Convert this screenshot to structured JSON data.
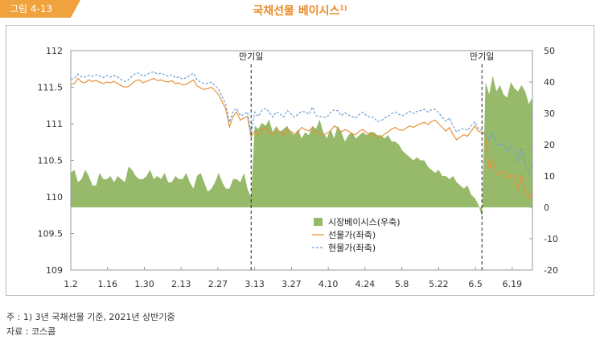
{
  "header": {
    "figure_label": "그림 4-13",
    "title": "국채선물 베이시스",
    "title_sup": "1)"
  },
  "notes": {
    "note": "주 : 1) 3년 국채선물 기준, 2021년 상반기중",
    "source": "자료 : 코스콤"
  },
  "colors": {
    "accent": "#f0a23c",
    "title": "#e98a2a",
    "basis_fill": "#96b96a",
    "futures_line": "#e8913a",
    "spot_line": "#6b9fd6"
  },
  "chart_data": {
    "type": "line",
    "x_tick_labels": [
      "1.2",
      "1.16",
      "1.30",
      "2.13",
      "2.27",
      "3.13",
      "3.27",
      "4.10",
      "4.24",
      "5.8",
      "5.22",
      "6.5",
      "6.19"
    ],
    "y_left": {
      "ticks": [
        112,
        111.5,
        111,
        110.5,
        110,
        109.5,
        109
      ],
      "ylim": [
        109,
        112
      ]
    },
    "y_right": {
      "ticks": [
        50,
        40,
        30,
        20,
        10,
        0,
        -10,
        -20
      ],
      "ylim": [
        -20,
        50
      ]
    },
    "annotations": [
      {
        "text": "만기일",
        "at_trading_day": 50
      },
      {
        "text": "만기일",
        "at_trading_day": 114
      }
    ],
    "legend": {
      "position": "center",
      "items": [
        "시장베이시스(우축)",
        "선물가(좌축)",
        "현물가(좌축)"
      ]
    },
    "series": [
      {
        "name": "시장베이시스(우축)",
        "axis": "right",
        "style": "area",
        "values": [
          11,
          12,
          8,
          9,
          12,
          10,
          7,
          7,
          11,
          9,
          9,
          10,
          8,
          10,
          9,
          8,
          13,
          12,
          10,
          9,
          9,
          10,
          12,
          9,
          10,
          9,
          11,
          8,
          8,
          10,
          9,
          9,
          11,
          8,
          6,
          10,
          11,
          8,
          5,
          6,
          8,
          11,
          8,
          6,
          6,
          9,
          9,
          8,
          11,
          6,
          3,
          26,
          25,
          27,
          26,
          28,
          24,
          26,
          24,
          25,
          26,
          24,
          23,
          25,
          22,
          24,
          23,
          26,
          25,
          28,
          24,
          22,
          25,
          22,
          26,
          24,
          21,
          23,
          24,
          22,
          23,
          24,
          23,
          24,
          24,
          23,
          23,
          22,
          23,
          21,
          21,
          20,
          18,
          17,
          16,
          15,
          16,
          15,
          15,
          13,
          12,
          11,
          12,
          10,
          10,
          9,
          10,
          8,
          7,
          6,
          7,
          4,
          3,
          1,
          -3,
          40,
          36,
          42,
          37,
          39,
          36,
          35,
          40,
          38,
          37,
          39,
          37,
          33,
          35
        ]
      },
      {
        "name": "선물가(좌축)",
        "axis": "left",
        "style": "solid",
        "values": [
          111.54,
          111.55,
          111.62,
          111.57,
          111.56,
          111.6,
          111.58,
          111.59,
          111.57,
          111.55,
          111.57,
          111.56,
          111.58,
          111.55,
          111.52,
          111.5,
          111.51,
          111.55,
          111.59,
          111.6,
          111.56,
          111.58,
          111.6,
          111.62,
          111.59,
          111.6,
          111.58,
          111.57,
          111.59,
          111.55,
          111.56,
          111.53,
          111.54,
          111.57,
          111.6,
          111.52,
          111.49,
          111.47,
          111.48,
          111.5,
          111.45,
          111.4,
          111.3,
          111.2,
          110.96,
          111.1,
          111.16,
          111.05,
          111.08,
          111.1,
          110.82,
          110.9,
          110.85,
          110.92,
          110.95,
          110.88,
          110.85,
          110.9,
          110.9,
          110.84,
          110.92,
          110.9,
          110.86,
          110.88,
          110.95,
          110.92,
          110.9,
          110.95,
          110.87,
          110.88,
          110.84,
          110.87,
          110.9,
          110.97,
          110.94,
          110.89,
          110.92,
          110.9,
          110.86,
          110.85,
          110.9,
          110.92,
          110.88,
          110.85,
          110.86,
          110.8,
          110.82,
          110.86,
          110.89,
          110.93,
          110.95,
          110.92,
          110.91,
          110.94,
          110.97,
          110.95,
          110.98,
          111.0,
          111.02,
          110.99,
          111.03,
          111.05,
          111.0,
          110.95,
          110.9,
          110.95,
          110.85,
          110.78,
          110.82,
          110.85,
          110.83,
          110.9,
          110.97,
          110.9,
          110.88,
          110.85,
          110.38,
          110.5,
          110.3,
          110.33,
          110.35,
          110.25,
          110.3,
          110.28,
          110.1,
          110.3,
          110.05,
          109.98,
          110.08
        ]
      },
      {
        "name": "현물가(좌축)",
        "axis": "left",
        "style": "dashed",
        "values": [
          111.61,
          111.62,
          111.68,
          111.64,
          111.64,
          111.66,
          111.65,
          111.67,
          111.65,
          111.63,
          111.66,
          111.64,
          111.66,
          111.64,
          111.6,
          111.58,
          111.6,
          111.65,
          111.69,
          111.69,
          111.65,
          111.67,
          111.7,
          111.71,
          111.68,
          111.69,
          111.67,
          111.65,
          111.67,
          111.63,
          111.64,
          111.61,
          111.63,
          111.66,
          111.69,
          111.6,
          111.57,
          111.55,
          111.55,
          111.57,
          111.52,
          111.47,
          111.37,
          111.26,
          111.02,
          111.17,
          111.21,
          111.11,
          111.13,
          111.16,
          110.85,
          111.16,
          111.1,
          111.19,
          111.21,
          111.16,
          111.09,
          111.16,
          111.14,
          111.09,
          111.18,
          111.14,
          111.09,
          111.13,
          111.17,
          111.16,
          111.13,
          111.23,
          111.11,
          111.1,
          111.09,
          111.09,
          111.15,
          111.19,
          111.18,
          111.11,
          111.15,
          111.12,
          111.1,
          111.08,
          111.13,
          111.16,
          111.11,
          111.09,
          111.09,
          111.03,
          111.04,
          111.08,
          111.1,
          111.14,
          111.16,
          111.13,
          111.11,
          111.14,
          111.17,
          111.14,
          111.17,
          111.18,
          111.2,
          111.16,
          111.19,
          111.2,
          111.15,
          111.09,
          111.03,
          111.08,
          110.97,
          110.89,
          110.92,
          110.94,
          110.91,
          110.97,
          111.03,
          110.94,
          110.91,
          110.85,
          110.78,
          110.86,
          110.72,
          110.7,
          110.74,
          110.61,
          110.69,
          110.66,
          110.49,
          110.67,
          110.44,
          110.35,
          110.43
        ]
      }
    ]
  }
}
